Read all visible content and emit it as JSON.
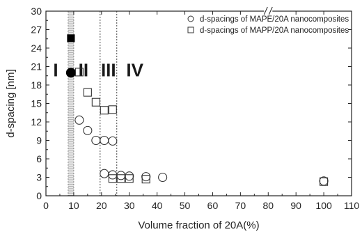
{
  "chart_data": {
    "type": "scatter",
    "xlabel": "Volume fraction of 20A(%)",
    "ylabel": "d-spacing [nm]",
    "xlim": [
      0,
      110
    ],
    "ylim": [
      0,
      30
    ],
    "x_ticks": [
      "0",
      "10",
      "20",
      "30",
      "40",
      "50",
      "60",
      "70",
      "80",
      "90",
      "100",
      "110"
    ],
    "y_ticks": [
      "0",
      "3",
      "6",
      "9",
      "12",
      "15",
      "18",
      "21",
      "24",
      "27",
      "30"
    ],
    "x_axis_break": "//",
    "series": [
      {
        "name": "d-spacings of MAPE/20A nanocomposites",
        "marker": "circle",
        "points": [
          [
            9,
            20.0
          ],
          [
            12,
            12.3
          ],
          [
            15,
            10.6
          ],
          [
            18,
            9.0
          ],
          [
            21,
            9.0
          ],
          [
            24,
            8.9
          ],
          [
            21,
            3.6
          ],
          [
            24,
            3.4
          ],
          [
            27,
            3.3
          ],
          [
            30,
            3.2
          ],
          [
            36,
            3.1
          ],
          [
            42,
            3.0
          ],
          [
            100,
            2.4
          ]
        ],
        "filled_x": [
          9
        ]
      },
      {
        "name": "d-spacings of MAPP/20A nanocomposites",
        "marker": "square",
        "points": [
          [
            9,
            25.6
          ],
          [
            12,
            20.1
          ],
          [
            15,
            16.8
          ],
          [
            18,
            15.2
          ],
          [
            21,
            13.9
          ],
          [
            24,
            14.0
          ],
          [
            24,
            2.8
          ],
          [
            27,
            2.8
          ],
          [
            30,
            2.8
          ],
          [
            36,
            2.7
          ],
          [
            100,
            2.3
          ]
        ],
        "filled_x": [
          9
        ]
      }
    ],
    "shaded_band": [
      8,
      10
    ],
    "dividers": [
      19.5,
      25.5
    ],
    "regions": [
      {
        "label": "I",
        "x": 3.5
      },
      {
        "label": "II",
        "x": 13.5
      },
      {
        "label": "III",
        "x": 22.5
      },
      {
        "label": "IV",
        "x": 32
      }
    ],
    "legend_position": "top-right"
  }
}
